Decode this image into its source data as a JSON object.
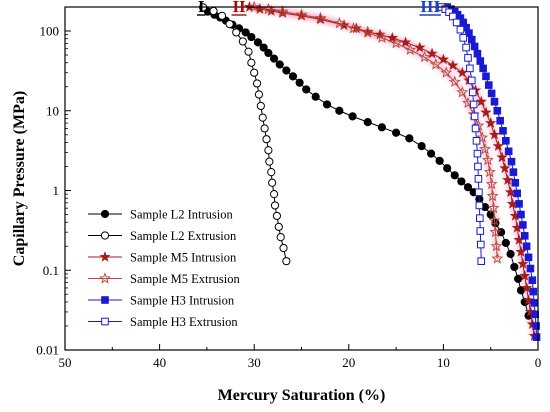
{
  "chart_data": {
    "type": "scatter",
    "xlabel": "Mercury Saturation (%)",
    "ylabel": "Capillary Pressure (MPa)",
    "xlim": [
      50,
      0
    ],
    "x_reversed": true,
    "ylim": [
      0.01,
      200
    ],
    "y_scale": "log",
    "x_ticks": [
      50,
      40,
      30,
      20,
      10,
      0
    ],
    "y_ticks": [
      {
        "value": 0.01,
        "label": "0.01"
      },
      {
        "value": 0.1,
        "label": "0.1"
      },
      {
        "value": 1,
        "label": "1"
      },
      {
        "value": 10,
        "label": "10"
      },
      {
        "value": 100,
        "label": "100"
      }
    ],
    "grid": false,
    "legend_position": "lower-left",
    "region_labels": [
      {
        "text": "I",
        "color": "#000000",
        "x": 35.6,
        "y": 200
      },
      {
        "text": "II",
        "color": "#c00000",
        "x": 31.6,
        "y": 200
      },
      {
        "text": "III",
        "color": "#1f3fd0",
        "x": 11.4,
        "y": 200
      }
    ],
    "series": [
      {
        "name": "Sample L2 Intrusion",
        "color": "#000000",
        "marker": "circle",
        "filled": true,
        "glow": false,
        "points": [
          [
            34.9,
            175
          ],
          [
            34.2,
            160
          ],
          [
            33.6,
            148
          ],
          [
            33.0,
            135
          ],
          [
            32.3,
            120
          ],
          [
            31.6,
            108
          ],
          [
            30.9,
            96
          ],
          [
            30.3,
            84
          ],
          [
            29.6,
            72
          ],
          [
            29.0,
            62
          ],
          [
            28.5,
            53
          ],
          [
            27.9,
            45
          ],
          [
            27.3,
            38
          ],
          [
            26.6,
            32
          ],
          [
            25.9,
            27
          ],
          [
            25.2,
            22.5
          ],
          [
            24.5,
            18.5
          ],
          [
            23.5,
            15
          ],
          [
            22.3,
            12
          ],
          [
            21.0,
            10
          ],
          [
            19.6,
            8.5
          ],
          [
            18.0,
            7.2
          ],
          [
            16.5,
            6.2
          ],
          [
            15.0,
            5.3
          ],
          [
            13.6,
            4.5
          ],
          [
            12.3,
            3.6
          ],
          [
            11.3,
            2.9
          ],
          [
            10.4,
            2.35
          ],
          [
            9.6,
            1.9
          ],
          [
            8.8,
            1.55
          ],
          [
            8.1,
            1.3
          ],
          [
            7.4,
            1.1
          ],
          [
            6.8,
            0.95
          ],
          [
            6.2,
            0.78
          ],
          [
            5.6,
            0.62
          ],
          [
            5.0,
            0.5
          ],
          [
            4.5,
            0.39
          ],
          [
            3.9,
            0.3
          ],
          [
            3.4,
            0.22
          ],
          [
            2.9,
            0.16
          ],
          [
            2.5,
            0.11
          ],
          [
            2.1,
            0.078
          ],
          [
            1.8,
            0.056
          ],
          [
            1.4,
            0.04
          ],
          [
            1.0,
            0.027
          ]
        ]
      },
      {
        "name": "Sample L2 Extrusion",
        "color": "#000000",
        "marker": "circle",
        "filled": false,
        "glow": false,
        "points": [
          [
            35.4,
            198
          ],
          [
            34.3,
            178
          ],
          [
            33.4,
            155
          ],
          [
            32.6,
            122
          ],
          [
            31.9,
            96
          ],
          [
            31.2,
            74
          ],
          [
            30.6,
            55
          ],
          [
            30.3,
            40
          ],
          [
            30.0,
            30
          ],
          [
            29.7,
            22
          ],
          [
            29.5,
            16
          ],
          [
            29.3,
            11.5
          ],
          [
            29.1,
            8.2
          ],
          [
            28.9,
            6
          ],
          [
            28.7,
            4.4
          ],
          [
            28.5,
            3.2
          ],
          [
            28.4,
            2.3
          ],
          [
            28.2,
            1.7
          ],
          [
            28.1,
            1.25
          ],
          [
            27.9,
            0.9
          ],
          [
            27.8,
            0.65
          ],
          [
            27.6,
            0.48
          ],
          [
            27.4,
            0.35
          ],
          [
            27.2,
            0.26
          ],
          [
            26.9,
            0.19
          ],
          [
            26.6,
            0.13
          ]
        ]
      },
      {
        "name": "Sample M5 Intrusion",
        "color": "#a81c1c",
        "marker": "star",
        "filled": true,
        "glow": true,
        "points": [
          [
            30.5,
            200
          ],
          [
            29.4,
            188
          ],
          [
            28.2,
            178
          ],
          [
            27.0,
            168
          ],
          [
            25.0,
            155
          ],
          [
            23.0,
            140
          ],
          [
            20.5,
            118
          ],
          [
            19.2,
            108
          ],
          [
            18.0,
            98
          ],
          [
            16.7,
            90
          ],
          [
            15.4,
            82
          ],
          [
            14.0,
            72
          ],
          [
            12.5,
            62
          ],
          [
            11.2,
            52
          ],
          [
            10.0,
            44
          ],
          [
            9.0,
            37
          ],
          [
            8.0,
            30
          ],
          [
            7.3,
            24
          ],
          [
            6.6,
            18
          ],
          [
            6.0,
            13
          ],
          [
            5.5,
            9.5
          ],
          [
            5.0,
            7
          ],
          [
            4.6,
            5
          ],
          [
            4.2,
            3.6
          ],
          [
            3.8,
            2.6
          ],
          [
            3.5,
            1.9
          ],
          [
            3.2,
            1.35
          ],
          [
            2.9,
            0.95
          ],
          [
            2.7,
            0.68
          ],
          [
            2.4,
            0.48
          ],
          [
            2.2,
            0.34
          ],
          [
            2.0,
            0.24
          ],
          [
            1.8,
            0.17
          ],
          [
            1.6,
            0.12
          ],
          [
            1.4,
            0.085
          ],
          [
            1.2,
            0.06
          ],
          [
            1.0,
            0.042
          ],
          [
            0.8,
            0.03
          ],
          [
            0.6,
            0.021
          ],
          [
            0.4,
            0.015
          ]
        ]
      },
      {
        "name": "Sample M5 Extrusion",
        "color": "#b5473a",
        "marker": "star",
        "filled": false,
        "glow": true,
        "points": [
          [
            30.0,
            200
          ],
          [
            28.5,
            188
          ],
          [
            27.0,
            175
          ],
          [
            25.0,
            160
          ],
          [
            23.0,
            145
          ],
          [
            21.0,
            125
          ],
          [
            19.5,
            108
          ],
          [
            18.0,
            95
          ],
          [
            16.5,
            82
          ],
          [
            15.0,
            70
          ],
          [
            13.5,
            58
          ],
          [
            12.0,
            47
          ],
          [
            10.8,
            38
          ],
          [
            9.7,
            30
          ],
          [
            8.8,
            23
          ],
          [
            8.0,
            17
          ],
          [
            7.4,
            12.5
          ],
          [
            6.8,
            9
          ],
          [
            6.3,
            6.5
          ],
          [
            5.9,
            4.6
          ],
          [
            5.6,
            3.3
          ],
          [
            5.3,
            2.4
          ],
          [
            5.1,
            1.7
          ],
          [
            4.9,
            1.2
          ],
          [
            4.8,
            0.85
          ],
          [
            4.7,
            0.6
          ],
          [
            4.6,
            0.42
          ],
          [
            4.5,
            0.3
          ],
          [
            4.4,
            0.2
          ],
          [
            4.3,
            0.14
          ]
        ]
      },
      {
        "name": "Sample H3 Intrusion",
        "color": "#1a1ad4",
        "marker": "square",
        "filled": true,
        "glow": false,
        "points": [
          [
            9.6,
            200
          ],
          [
            9.2,
            188
          ],
          [
            8.8,
            175
          ],
          [
            8.5,
            160
          ],
          [
            8.2,
            145
          ],
          [
            7.9,
            128
          ],
          [
            7.6,
            110
          ],
          [
            7.3,
            94
          ],
          [
            7.0,
            78
          ],
          [
            6.7,
            64
          ],
          [
            6.4,
            52
          ],
          [
            6.1,
            42
          ],
          [
            5.8,
            34
          ],
          [
            5.5,
            27
          ],
          [
            5.2,
            21
          ],
          [
            4.9,
            16.5
          ],
          [
            4.6,
            13
          ],
          [
            4.3,
            10
          ],
          [
            4.0,
            7.5
          ],
          [
            3.7,
            5.6
          ],
          [
            3.4,
            4.2
          ],
          [
            3.1,
            3.1
          ],
          [
            2.8,
            2.3
          ],
          [
            2.6,
            1.7
          ],
          [
            2.4,
            1.25
          ],
          [
            2.2,
            0.92
          ],
          [
            2.0,
            0.68
          ],
          [
            1.8,
            0.5
          ],
          [
            1.6,
            0.37
          ],
          [
            1.4,
            0.27
          ],
          [
            1.2,
            0.2
          ],
          [
            1.0,
            0.145
          ],
          [
            0.8,
            0.105
          ],
          [
            0.6,
            0.075
          ],
          [
            0.5,
            0.054
          ],
          [
            0.4,
            0.039
          ],
          [
            0.3,
            0.028
          ],
          [
            0.2,
            0.02
          ],
          [
            0.15,
            0.0145
          ]
        ]
      },
      {
        "name": "Sample H3 Extrusion",
        "color": "#1a1ad4",
        "marker": "square",
        "filled": false,
        "glow": false,
        "points": [
          [
            10.2,
            200
          ],
          [
            9.8,
            188
          ],
          [
            9.4,
            172
          ],
          [
            9.0,
            152
          ],
          [
            8.6,
            128
          ],
          [
            8.2,
            104
          ],
          [
            7.9,
            82
          ],
          [
            7.6,
            62
          ],
          [
            7.4,
            46
          ],
          [
            7.2,
            34
          ],
          [
            7.0,
            24
          ],
          [
            6.9,
            17
          ],
          [
            6.8,
            12
          ],
          [
            6.7,
            8.5
          ],
          [
            6.6,
            6
          ],
          [
            6.5,
            4.2
          ],
          [
            6.4,
            2.9
          ],
          [
            6.35,
            2.0
          ],
          [
            6.3,
            1.4
          ],
          [
            6.25,
            0.95
          ],
          [
            6.2,
            0.65
          ],
          [
            6.15,
            0.45
          ],
          [
            6.1,
            0.31
          ],
          [
            6.05,
            0.21
          ],
          [
            6.0,
            0.13
          ]
        ]
      }
    ]
  }
}
